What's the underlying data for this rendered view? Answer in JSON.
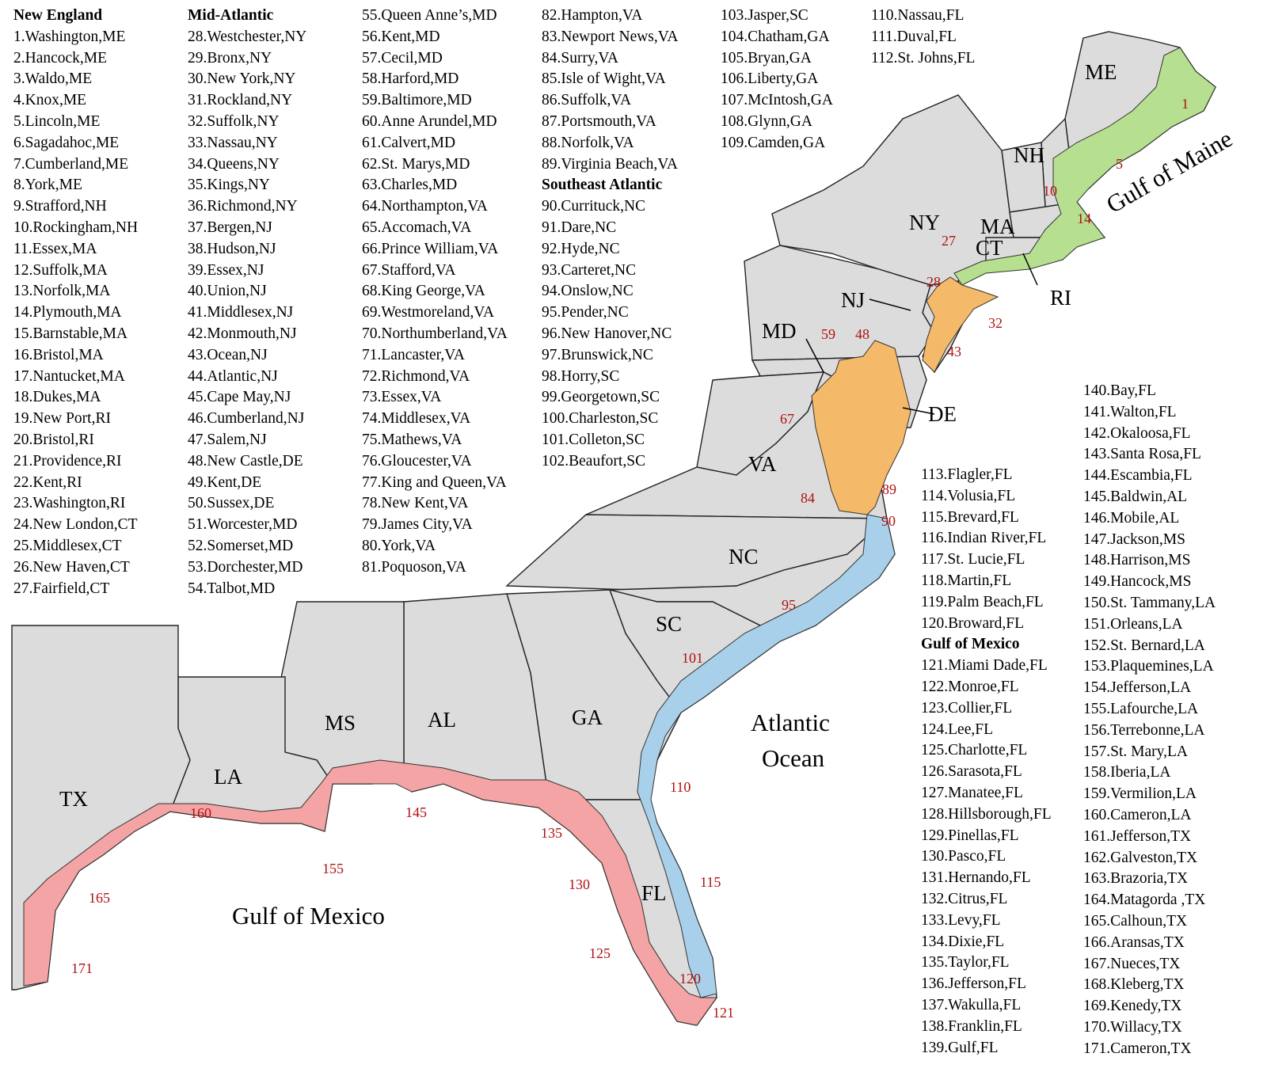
{
  "colors": {
    "land": "#dcdcdc",
    "new_england": "#b6e08f",
    "mid_atlantic": "#f5b96a",
    "southeast_atlantic": "#a9d0ea",
    "gulf_of_mexico": "#f4a4a4",
    "county_number": "#b01010"
  },
  "legend": {
    "new_england": {
      "heading": "New England",
      "items": [
        "1.Washington,ME",
        "2.Hancock,ME",
        "3.Waldo,ME",
        "4.Knox,ME",
        "5.Lincoln,ME",
        "6.Sagadahoc,ME",
        "7.Cumberland,ME",
        "8.York,ME",
        "9.Strafford,NH",
        "10.Rockingham,NH",
        "11.Essex,MA",
        "12.Suffolk,MA",
        "13.Norfolk,MA",
        "14.Plymouth,MA",
        "15.Barnstable,MA",
        "16.Bristol,MA",
        "17.Nantucket,MA",
        "18.Dukes,MA",
        "19.New Port,RI",
        "20.Bristol,RI",
        "21.Providence,RI",
        "22.Kent,RI",
        "23.Washington,RI",
        "24.New London,CT",
        "25.Middlesex,CT",
        "26.New Haven,CT",
        "27.Fairfield,CT"
      ]
    },
    "mid_atlantic_a": {
      "heading": "Mid-Atlantic",
      "items": [
        "28.Westchester,NY",
        "29.Bronx,NY",
        "30.New York,NY",
        "31.Rockland,NY",
        "32.Suffolk,NY",
        "33.Nassau,NY",
        "34.Queens,NY",
        "35.Kings,NY",
        "36.Richmond,NY",
        "37.Bergen,NJ",
        "38.Hudson,NJ",
        "39.Essex,NJ",
        "40.Union,NJ",
        "41.Middlesex,NJ",
        "42.Monmouth,NJ",
        "43.Ocean,NJ",
        "44.Atlantic,NJ",
        "45.Cape May,NJ",
        "46.Cumberland,NJ",
        "47.Salem,NJ",
        "48.New Castle,DE",
        "49.Kent,DE",
        "50.Sussex,DE",
        "51.Worcester,MD",
        "52.Somerset,MD",
        "53.Dorchester,MD",
        "54.Talbot,MD"
      ]
    },
    "mid_atlantic_b": {
      "items": [
        "55.Queen Anne’s,MD",
        "56.Kent,MD",
        "57.Cecil,MD",
        "58.Harford,MD",
        "59.Baltimore,MD",
        "60.Anne Arundel,MD",
        "61.Calvert,MD",
        "62.St. Marys,MD",
        "63.Charles,MD",
        "64.Northampton,VA",
        "65.Accomach,VA",
        "66.Prince William,VA",
        "67.Stafford,VA",
        "68.King George,VA",
        "69.Westmoreland,VA",
        "70.Northumberland,VA",
        "71.Lancaster,VA",
        "72.Richmond,VA",
        "73.Essex,VA",
        "74.Middlesex,VA",
        "75.Mathews,VA",
        "76.Gloucester,VA",
        "77.King and Queen,VA",
        "78.New Kent,VA",
        "79.James City,VA",
        "80.York,VA",
        "81.Poquoson,VA"
      ]
    },
    "mid_atlantic_c": {
      "items": [
        "82.Hampton,VA",
        "83.Newport News,VA",
        "84.Surry,VA",
        "85.Isle of Wight,VA",
        "86.Suffolk,VA",
        "87.Portsmouth,VA",
        "88.Norfolk,VA",
        "89.Virginia Beach,VA"
      ]
    },
    "southeast_atlantic_a": {
      "heading": "Southeast Atlantic",
      "items": [
        "90.Currituck,NC",
        "91.Dare,NC",
        "92.Hyde,NC",
        "93.Carteret,NC",
        "94.Onslow,NC",
        "95.Pender,NC",
        "96.New Hanover,NC",
        "97.Brunswick,NC",
        "98.Horry,SC",
        "99.Georgetown,SC",
        "100.Charleston,SC",
        "101.Colleton,SC",
        "102.Beaufort,SC"
      ]
    },
    "southeast_atlantic_b": {
      "items": [
        "103.Jasper,SC",
        "104.Chatham,GA",
        "105.Bryan,GA",
        "106.Liberty,GA",
        "107.McIntosh,GA",
        "108.Glynn,GA",
        "109.Camden,GA"
      ]
    },
    "southeast_atlantic_c": {
      "items": [
        "110.Nassau,FL",
        "111.Duval,FL",
        "112.St. Johns,FL"
      ]
    },
    "southeast_atlantic_d": {
      "items": [
        "113.Flagler,FL",
        "114.Volusia,FL",
        "115.Brevard,FL",
        "116.Indian River,FL",
        "117.St. Lucie,FL",
        "118.Martin,FL",
        "119.Palm Beach,FL",
        "120.Broward,FL"
      ]
    },
    "gulf_a": {
      "heading": "Gulf of Mexico",
      "items": [
        "121.Miami Dade,FL",
        "122.Monroe,FL",
        "123.Collier,FL",
        "124.Lee,FL",
        "125.Charlotte,FL",
        "126.Sarasota,FL",
        "127.Manatee,FL",
        "128.Hillsborough,FL",
        "129.Pinellas,FL",
        "130.Pasco,FL",
        "131.Hernando,FL",
        "132.Citrus,FL",
        "133.Levy,FL",
        "134.Dixie,FL",
        "135.Taylor,FL",
        "136.Jefferson,FL",
        "137.Wakulla,FL",
        "138.Franklin,FL",
        "139.Gulf,FL"
      ]
    },
    "gulf_b": {
      "items": [
        "140.Bay,FL",
        "141.Walton,FL",
        "142.Okaloosa,FL",
        "143.Santa Rosa,FL",
        "144.Escambia,FL",
        "145.Baldwin,AL",
        "146.Mobile,AL",
        "147.Jackson,MS",
        "148.Harrison,MS",
        "149.Hancock,MS",
        "150.St. Tammany,LA",
        "151.Orleans,LA",
        "152.St. Bernard,LA",
        "153.Plaquemines,LA",
        "154.Jefferson,LA",
        "155.Lafourche,LA",
        "156.Terrebonne,LA",
        "157.St. Mary,LA",
        "158.Iberia,LA",
        "159.Vermilion,LA",
        "160.Cameron,LA",
        "161.Jefferson,TX",
        "162.Galveston,TX",
        "163.Brazoria,TX",
        "164.Matagorda ,TX",
        "165.Calhoun,TX",
        "166.Aransas,TX",
        "167.Nueces,TX",
        "168.Kleberg,TX",
        "169.Kenedy,TX",
        "170.Willacy,TX",
        "171.Cameron,TX"
      ]
    }
  },
  "map": {
    "states": [
      "ME",
      "NH",
      "NY",
      "MA",
      "CT",
      "RI",
      "NJ",
      "MD",
      "DE",
      "VA",
      "NC",
      "SC",
      "GA",
      "AL",
      "MS",
      "LA",
      "TX",
      "FL"
    ],
    "water_bodies": [
      "Gulf of Maine",
      "Atlantic",
      "Ocean",
      "Gulf of Mexico"
    ],
    "county_numbers": [
      "1",
      "5",
      "10",
      "14",
      "27",
      "28",
      "32",
      "43",
      "48",
      "59",
      "67",
      "84",
      "89",
      "90",
      "95",
      "101",
      "110",
      "115",
      "120",
      "121",
      "125",
      "130",
      "135",
      "145",
      "155",
      "160",
      "165",
      "171"
    ]
  }
}
